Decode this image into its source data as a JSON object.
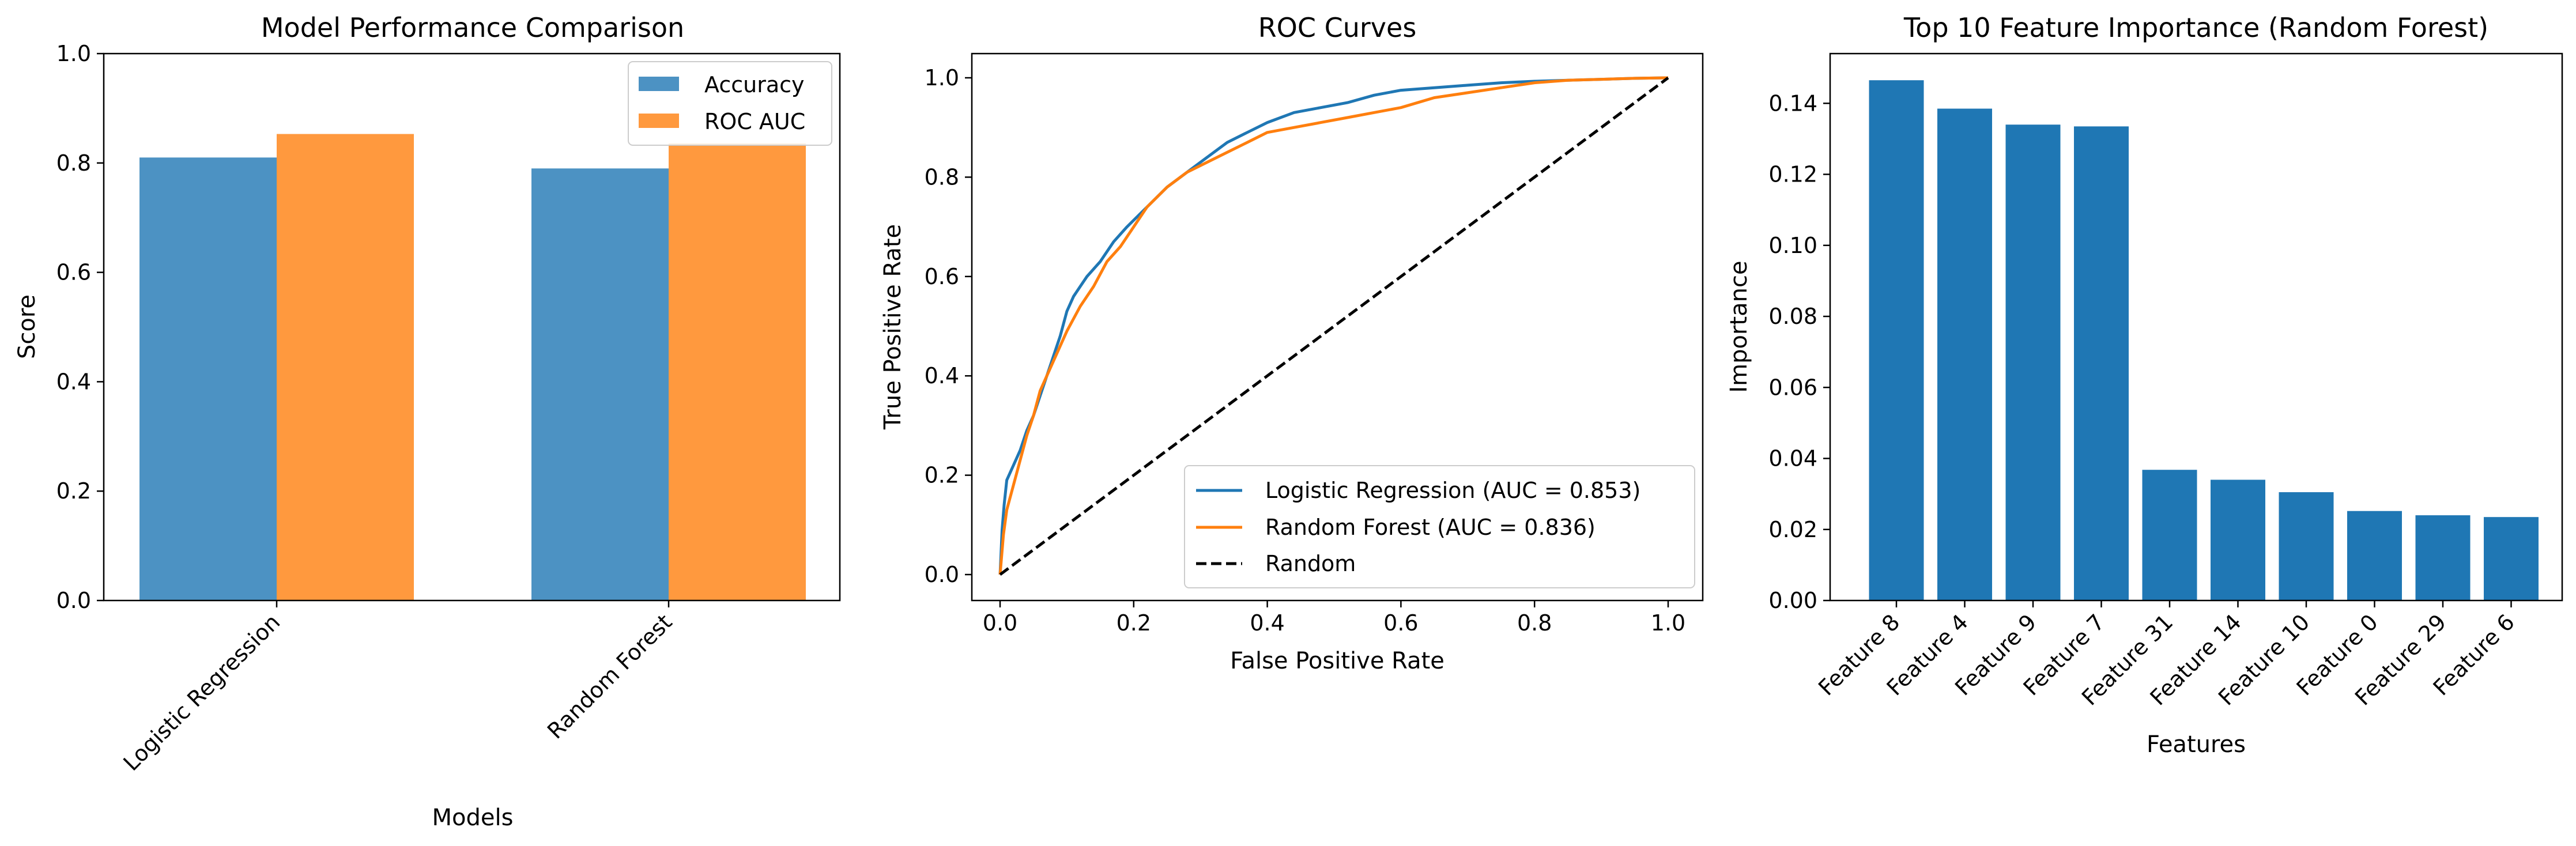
{
  "colors": {
    "blue": "#1f77b4",
    "orange": "#ff7f0e",
    "black": "#000000"
  },
  "chart_data": [
    {
      "type": "bar",
      "title": "Model Performance Comparison",
      "xlabel": "Models",
      "ylabel": "Score",
      "categories": [
        "Logistic Regression",
        "Random Forest"
      ],
      "series": [
        {
          "name": "Accuracy",
          "values": [
            0.81,
            0.79
          ],
          "color": "#1f77b4"
        },
        {
          "name": "ROC AUC",
          "values": [
            0.853,
            0.836
          ],
          "color": "#ff7f0e"
        }
      ],
      "ylim": [
        0,
        1.0
      ],
      "yticks": [
        "0.0",
        "0.2",
        "0.4",
        "0.6",
        "0.8",
        "1.0"
      ],
      "bar_alpha": 0.8,
      "legend": "top-right",
      "grid": false
    },
    {
      "type": "line",
      "title": "ROC Curves",
      "xlabel": "False Positive Rate",
      "ylabel": "True Positive Rate",
      "xlim": [
        0,
        1
      ],
      "ylim": [
        0,
        1
      ],
      "xticks": [
        "0.0",
        "0.2",
        "0.4",
        "0.6",
        "0.8",
        "1.0"
      ],
      "yticks": [
        "0.0",
        "0.2",
        "0.4",
        "0.6",
        "0.8",
        "1.0"
      ],
      "legend": "lower-right",
      "grid": false,
      "series": [
        {
          "name": "Logistic Regression (AUC = 0.853)",
          "color": "#1f77b4",
          "style": "solid",
          "points": [
            [
              0,
              0
            ],
            [
              0.003,
              0.09
            ],
            [
              0.006,
              0.14
            ],
            [
              0.01,
              0.19
            ],
            [
              0.02,
              0.22
            ],
            [
              0.03,
              0.25
            ],
            [
              0.04,
              0.29
            ],
            [
              0.05,
              0.32
            ],
            [
              0.06,
              0.36
            ],
            [
              0.07,
              0.4
            ],
            [
              0.08,
              0.44
            ],
            [
              0.09,
              0.48
            ],
            [
              0.1,
              0.53
            ],
            [
              0.11,
              0.56
            ],
            [
              0.12,
              0.58
            ],
            [
              0.13,
              0.6
            ],
            [
              0.15,
              0.63
            ],
            [
              0.17,
              0.67
            ],
            [
              0.19,
              0.7
            ],
            [
              0.22,
              0.74
            ],
            [
              0.25,
              0.78
            ],
            [
              0.28,
              0.81
            ],
            [
              0.31,
              0.84
            ],
            [
              0.34,
              0.87
            ],
            [
              0.37,
              0.89
            ],
            [
              0.4,
              0.91
            ],
            [
              0.44,
              0.93
            ],
            [
              0.48,
              0.94
            ],
            [
              0.52,
              0.95
            ],
            [
              0.56,
              0.965
            ],
            [
              0.6,
              0.975
            ],
            [
              0.65,
              0.98
            ],
            [
              0.7,
              0.985
            ],
            [
              0.75,
              0.99
            ],
            [
              0.8,
              0.993
            ],
            [
              0.85,
              0.995
            ],
            [
              0.9,
              0.997
            ],
            [
              0.95,
              0.999
            ],
            [
              1.0,
              1.0
            ]
          ]
        },
        {
          "name": "Random Forest (AUC = 0.836)",
          "color": "#ff7f0e",
          "style": "solid",
          "points": [
            [
              0,
              0
            ],
            [
              0.005,
              0.08
            ],
            [
              0.01,
              0.13
            ],
            [
              0.02,
              0.18
            ],
            [
              0.03,
              0.23
            ],
            [
              0.04,
              0.28
            ],
            [
              0.05,
              0.32
            ],
            [
              0.06,
              0.37
            ],
            [
              0.07,
              0.4
            ],
            [
              0.08,
              0.43
            ],
            [
              0.09,
              0.46
            ],
            [
              0.1,
              0.49
            ],
            [
              0.12,
              0.54
            ],
            [
              0.14,
              0.58
            ],
            [
              0.16,
              0.63
            ],
            [
              0.18,
              0.66
            ],
            [
              0.2,
              0.7
            ],
            [
              0.22,
              0.74
            ],
            [
              0.25,
              0.78
            ],
            [
              0.28,
              0.81
            ],
            [
              0.31,
              0.83
            ],
            [
              0.34,
              0.85
            ],
            [
              0.37,
              0.87
            ],
            [
              0.4,
              0.89
            ],
            [
              0.44,
              0.9
            ],
            [
              0.48,
              0.91
            ],
            [
              0.52,
              0.92
            ],
            [
              0.56,
              0.93
            ],
            [
              0.6,
              0.94
            ],
            [
              0.65,
              0.96
            ],
            [
              0.7,
              0.97
            ],
            [
              0.75,
              0.98
            ],
            [
              0.8,
              0.99
            ],
            [
              0.85,
              0.995
            ],
            [
              0.9,
              0.997
            ],
            [
              0.95,
              0.999
            ],
            [
              1.0,
              1.0
            ]
          ]
        },
        {
          "name": "Random",
          "color": "#000000",
          "style": "dashed",
          "points": [
            [
              0,
              0
            ],
            [
              1,
              1
            ]
          ]
        }
      ]
    },
    {
      "type": "bar",
      "title": "Top 10 Feature Importance (Random Forest)",
      "xlabel": "Features",
      "ylabel": "Importance",
      "categories": [
        "Feature 8",
        "Feature 4",
        "Feature 9",
        "Feature 7",
        "Feature 31",
        "Feature 14",
        "Feature 10",
        "Feature 0",
        "Feature 29",
        "Feature 6"
      ],
      "values": [
        0.1465,
        0.1385,
        0.134,
        0.1335,
        0.0368,
        0.034,
        0.0305,
        0.0252,
        0.024,
        0.0235
      ],
      "color": "#1f77b4",
      "ylim": [
        0,
        0.154
      ],
      "yticks": [
        "0.00",
        "0.02",
        "0.04",
        "0.06",
        "0.08",
        "0.10",
        "0.12",
        "0.14"
      ],
      "grid": false
    }
  ]
}
